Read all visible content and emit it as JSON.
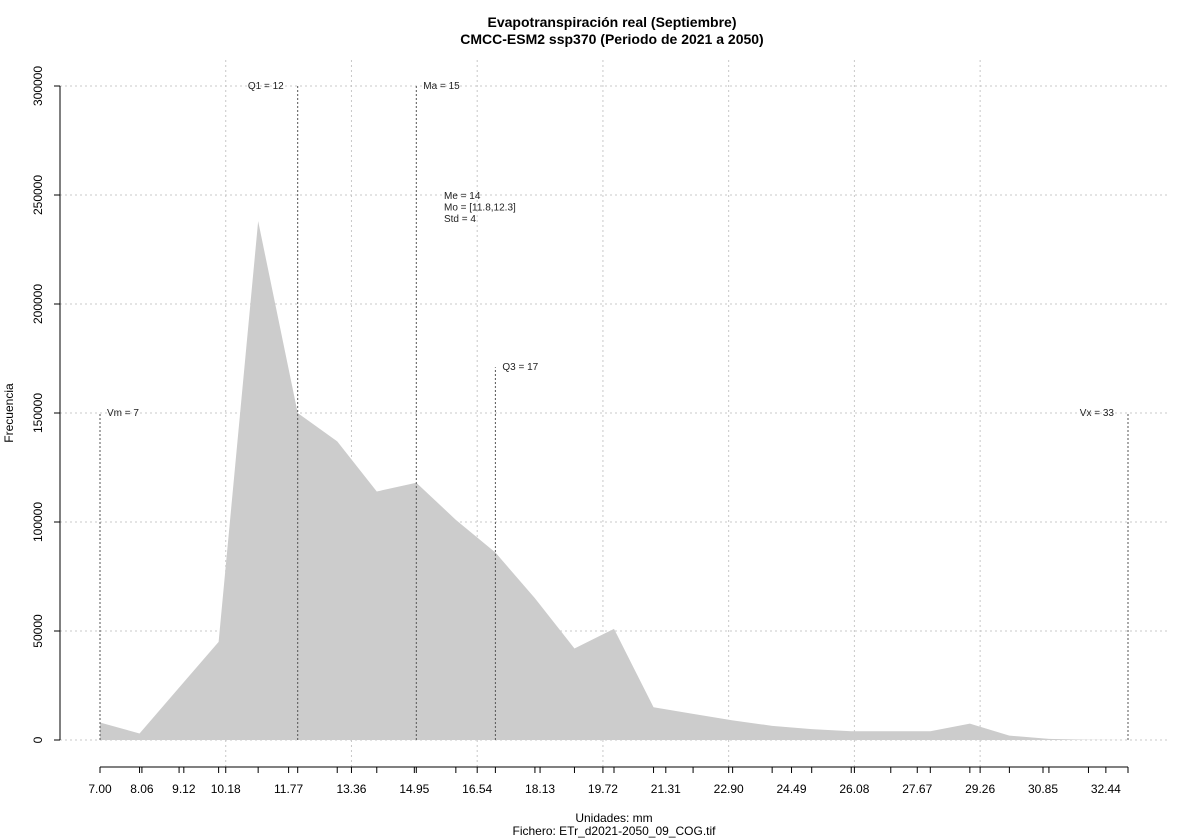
{
  "chart_data": {
    "type": "area",
    "title": "Evapotranspiración real (Septiembre)",
    "subtitle": "CMCC-ESM2 ssp370 (Periodo de 2021 a 2050)",
    "xlabel": "Unidades: mm",
    "ylabel": "Frecuencia",
    "footer": "Fichero: ETr_d2021-2050_09_COG.tif",
    "fill_color": "#cccccc",
    "grid": true,
    "xlim": [
      7.0,
      33.0
    ],
    "ylim": [
      0,
      300000
    ],
    "x_tick_labels": [
      "7.00",
      "8.06",
      "9.12",
      "10.18",
      "11.77",
      "13.36",
      "14.95",
      "16.54",
      "18.13",
      "19.72",
      "21.31",
      "22.90",
      "24.49",
      "26.08",
      "27.67",
      "29.26",
      "30.85",
      "32.44"
    ],
    "x_tick_values": [
      7.0,
      8.06,
      9.12,
      10.18,
      11.77,
      13.36,
      14.95,
      16.54,
      18.13,
      19.72,
      21.31,
      22.9,
      24.49,
      26.08,
      27.67,
      29.26,
      30.85,
      32.44
    ],
    "y_ticks": [
      0,
      50000,
      100000,
      150000,
      200000,
      250000,
      300000
    ],
    "y_tick_labels": [
      "0",
      "50000",
      "100000",
      "150000",
      "200000",
      "250000",
      "300000"
    ],
    "x_grid": [
      10.18,
      13.36,
      16.54,
      19.72,
      22.9,
      26.08,
      29.26
    ],
    "x": [
      7.0,
      8.0,
      9.0,
      10.0,
      11.0,
      12.0,
      13.0,
      14.0,
      15.0,
      16.0,
      17.0,
      18.0,
      19.0,
      20.0,
      21.0,
      22.0,
      23.0,
      24.0,
      25.0,
      26.0,
      27.0,
      28.0,
      29.0,
      30.0,
      31.0,
      32.0,
      33.0
    ],
    "y": [
      8000,
      3000,
      24000,
      45000,
      238000,
      150000,
      137000,
      114000,
      118000,
      101000,
      86000,
      65000,
      42000,
      51000,
      15000,
      12000,
      9000,
      6500,
      5000,
      4000,
      4000,
      4000,
      7500,
      2000,
      500,
      100,
      0
    ],
    "reference_lines": [
      {
        "label": "Vm = 7",
        "x": 7.0,
        "y_top": 150000,
        "label_y": 150000,
        "label_side": "right"
      },
      {
        "label": "Q1 = 12",
        "x": 12.0,
        "y_top": 300000,
        "label_y": 300000,
        "label_side": "left"
      },
      {
        "label": "Ma = 15",
        "x": 15.0,
        "y_top": 300000,
        "label_y": 300000,
        "label_side": "right"
      },
      {
        "label": "Q3 = 17",
        "x": 17.0,
        "y_top": 171000,
        "label_y": 171000,
        "label_side": "right"
      },
      {
        "label": "Vx = 33",
        "x": 33.0,
        "y_top": 150000,
        "label_y": 150000,
        "label_side": "left"
      }
    ],
    "stats": {
      "x": 15.7,
      "y": 245000,
      "lines": [
        "Me = 14",
        "Mo = [11.8,12.3]",
        "Std = 4"
      ]
    }
  }
}
